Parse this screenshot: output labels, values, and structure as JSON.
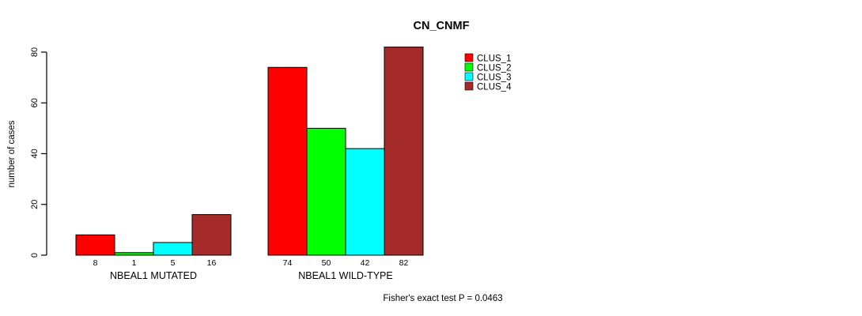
{
  "chart_data": {
    "type": "bar",
    "title": "CN_CNMF",
    "ylabel": "number of cases",
    "xlabel": "",
    "ylim": [
      0,
      80
    ],
    "yticks": [
      0,
      20,
      40,
      60,
      80
    ],
    "categories": [
      "NBEAL1 MUTATED",
      "NBEAL1 WILD-TYPE"
    ],
    "series": [
      {
        "name": "CLUS_1",
        "color": "#FF0000",
        "values": [
          8,
          74
        ]
      },
      {
        "name": "CLUS_2",
        "color": "#00FF00",
        "values": [
          1,
          50
        ]
      },
      {
        "name": "CLUS_3",
        "color": "#00FFFF",
        "values": [
          5,
          42
        ]
      },
      {
        "name": "CLUS_4",
        "color": "#A52A2A",
        "values": [
          16,
          82
        ]
      }
    ],
    "bar_value_labels": true,
    "legend_position": "top-right",
    "grid": false,
    "annotation": "Fisher's exact test P = 0.0463"
  },
  "colors": {
    "axis": "#000000",
    "text": "#000000",
    "bar_border": "#000000",
    "background": "#FFFFFF"
  }
}
